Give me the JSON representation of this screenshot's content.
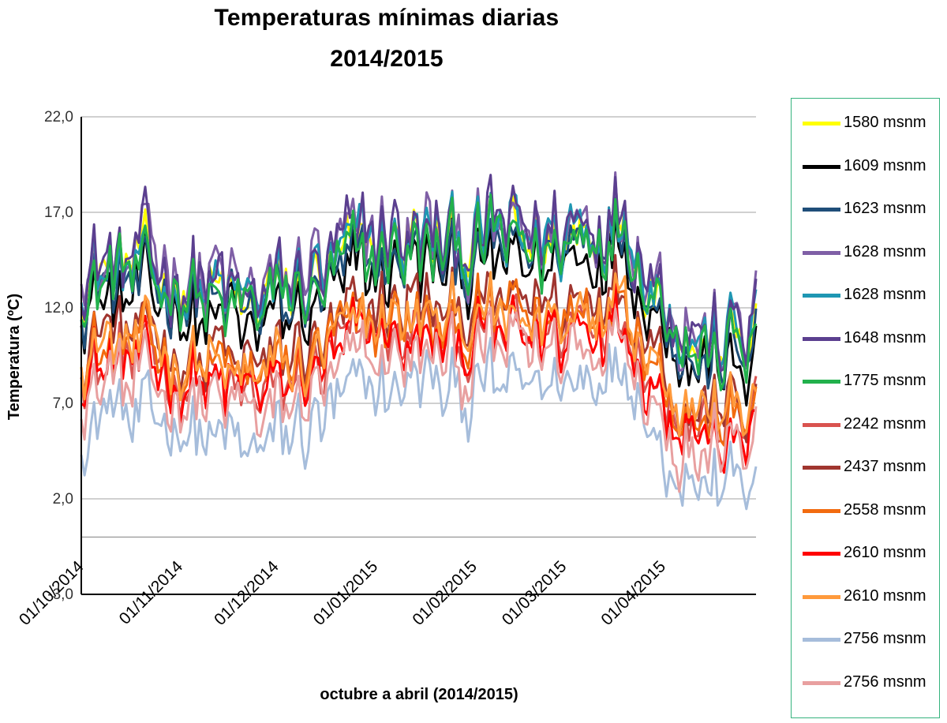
{
  "chart_data": {
    "type": "line",
    "title": "Temperaturas mínimas diarias",
    "subtitle": "2014/2015",
    "xlabel": "octubre a abril (2014/2015)",
    "ylabel": "Temperatura (ºC)",
    "ylim": [
      -3,
      22
    ],
    "yticks": [
      "22,0",
      "17,0",
      "12,0",
      "7,0",
      "2,0",
      "-3,0"
    ],
    "xticks": [
      "01/10/2014",
      "01/11/2014",
      "01/12/2014",
      "01/01/2015",
      "01/02/2015",
      "01/03/2015",
      "01/04/2015"
    ],
    "x_start": "2014-10-01",
    "x_end": "2015-04-30",
    "grid": true,
    "legend_position": "right",
    "series": [
      {
        "name": "1580 msnm",
        "color": "#ffff00"
      },
      {
        "name": "1609 msnm",
        "color": "#000000"
      },
      {
        "name": "1623 msnm",
        "color": "#1f4e79"
      },
      {
        "name": "1628 msnm",
        "color": "#7f5fa6"
      },
      {
        "name": "1628 msnm",
        "color": "#1f97b3"
      },
      {
        "name": "1648 msnm",
        "color": "#5b3f8f"
      },
      {
        "name": "1775 msnm",
        "color": "#22b14c"
      },
      {
        "name": "2242 msnm",
        "color": "#d9534f"
      },
      {
        "name": "2437 msnm",
        "color": "#a0352f"
      },
      {
        "name": "2558 msnm",
        "color": "#f26b0f"
      },
      {
        "name": "2610 msnm",
        "color": "#ff0000"
      },
      {
        "name": "2610 msnm",
        "color": "#ff9a3c"
      },
      {
        "name": "2756 msnm",
        "color": "#a6bddb"
      },
      {
        "name": "2756 msnm",
        "color": "#e8a0a0"
      }
    ]
  }
}
